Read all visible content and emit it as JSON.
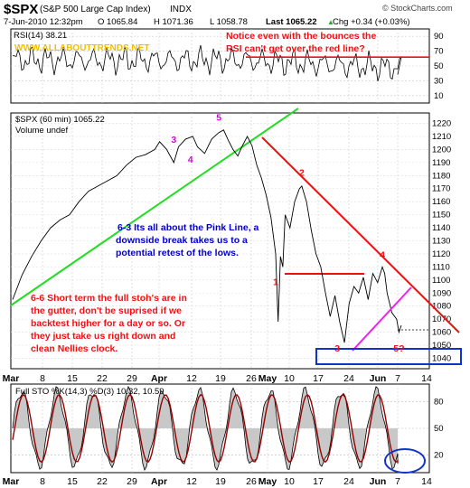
{
  "header": {
    "symbol": "$SPX",
    "name": "(S&P 500 Large Cap Index)",
    "exchange": "INDX",
    "watermark": "© StockCharts.com",
    "quote": {
      "date_time": "7-Jun-2010 12:32pm",
      "open": "O 1065.84",
      "high": "H 1071.36",
      "low": "L 1058.78",
      "last": "Last 1065.22",
      "change": "Chg +0.34 (+0.03%)",
      "change_arrow": "▲"
    }
  },
  "colors": {
    "price": "#000000",
    "green_line": "#22dd22",
    "red_line": "#ee1111",
    "pink_line": "#ee22ee",
    "annotation_blue": "#0000cc",
    "annotation_red": "#ee1111",
    "wave_magenta": "#dd00dd",
    "box_blue": "#1133cc",
    "url_yellow": "#f0c000",
    "osc_fill": "#c8c8c8",
    "osc_line": "#990000"
  },
  "chart_data": [
    {
      "type": "line",
      "panel": "rsi",
      "legend": "RSI(14) 38.21",
      "y_ticks": [
        10,
        30,
        50,
        70,
        90
      ],
      "tick_labels_right": [
        "90",
        "70",
        "50",
        "30",
        "10"
      ],
      "ylim": [
        0,
        100
      ],
      "reference_line": 62,
      "values_end": 38.21,
      "watermark_url": "WWW.ALLABOUTTRENDS.NET",
      "annotation": [
        "Notice even with  the bounces the",
        "RSI can't get over the red line?"
      ]
    },
    {
      "type": "line",
      "panel": "price",
      "legend": "$SPX (60 min) 1065.22",
      "volume_legend": "Volume undef",
      "ylim": [
        1032,
        1228
      ],
      "y_ticks": [
        1040,
        1050,
        1060,
        1070,
        1080,
        1090,
        1100,
        1110,
        1120,
        1130,
        1140,
        1150,
        1160,
        1170,
        1180,
        1190,
        1200,
        1210,
        1220
      ],
      "x_dates": [
        "Mar",
        "8",
        "15",
        "22",
        "29",
        "Apr",
        "12",
        "19",
        "26",
        "May",
        "10",
        "17",
        "24",
        "Jun",
        "7",
        "14"
      ],
      "price_path": [
        [
          0,
          1085
        ],
        [
          4,
          1104
        ],
        [
          8,
          1118
        ],
        [
          12,
          1130
        ],
        [
          16,
          1140
        ],
        [
          20,
          1146
        ],
        [
          24,
          1150
        ],
        [
          28,
          1160
        ],
        [
          32,
          1168
        ],
        [
          36,
          1172
        ],
        [
          40,
          1176
        ],
        [
          44,
          1180
        ],
        [
          48,
          1188
        ],
        [
          52,
          1194
        ],
        [
          56,
          1196
        ],
        [
          60,
          1200
        ],
        [
          62,
          1206
        ],
        [
          65,
          1200
        ],
        [
          68,
          1190
        ],
        [
          70,
          1202
        ],
        [
          73,
          1208
        ],
        [
          76,
          1210
        ],
        [
          78,
          1202
        ],
        [
          81,
          1197
        ],
        [
          84,
          1208
        ],
        [
          87,
          1213
        ],
        [
          89,
          1215
        ],
        [
          91,
          1207
        ],
        [
          93,
          1200
        ],
        [
          95,
          1195
        ],
        [
          97,
          1203
        ],
        [
          99,
          1210
        ],
        [
          101,
          1203
        ],
        [
          103,
          1188
        ],
        [
          105,
          1178
        ],
        [
          107,
          1165
        ],
        [
          109,
          1148
        ],
        [
          111,
          1120
        ],
        [
          112,
          1068
        ],
        [
          113,
          1118
        ],
        [
          114,
          1110
        ],
        [
          115,
          1150
        ],
        [
          117,
          1140
        ],
        [
          119,
          1160
        ],
        [
          121,
          1170
        ],
        [
          122,
          1172
        ],
        [
          124,
          1160
        ],
        [
          126,
          1138
        ],
        [
          128,
          1120
        ],
        [
          130,
          1110
        ],
        [
          132,
          1090
        ],
        [
          134,
          1072
        ],
        [
          136,
          1088
        ],
        [
          138,
          1068
        ],
        [
          140,
          1052
        ],
        [
          142,
          1082
        ],
        [
          144,
          1095
        ],
        [
          146,
          1090
        ],
        [
          148,
          1102
        ],
        [
          150,
          1085
        ],
        [
          152,
          1105
        ],
        [
          154,
          1098
        ],
        [
          156,
          1110
        ],
        [
          157,
          1105
        ],
        [
          158,
          1090
        ],
        [
          160,
          1075
        ],
        [
          162,
          1070
        ],
        [
          163,
          1060
        ],
        [
          164,
          1065.22
        ]
      ],
      "wave_labels": [
        {
          "text": "1",
          "color": "red",
          "x": 111,
          "y": 1096
        },
        {
          "text": "2",
          "color": "red",
          "x": 122,
          "y": 1180
        },
        {
          "text": "3",
          "color": "red",
          "x": 137,
          "y": 1045
        },
        {
          "text": "4",
          "color": "red",
          "x": 156,
          "y": 1117
        },
        {
          "text": "5?",
          "color": "red",
          "x": 163,
          "y": 1045
        },
        {
          "text": "3",
          "color": "magenta",
          "x": 68,
          "y": 1205
        },
        {
          "text": "4",
          "color": "magenta",
          "x": 75,
          "y": 1190
        },
        {
          "text": "5",
          "color": "magenta",
          "x": 87,
          "y": 1222
        }
      ],
      "annotation_middle": [
        "6-3 Its all about the Pink Line, a",
        "downside break takes us to a",
        "potential retest of the lows."
      ],
      "annotation_left": [
        "6-6 Short term the full stoh's are in",
        "the gutter, don't be suprised if we",
        "backtest higher for a day or so. Or",
        "they just take us right down and",
        "clean Nellies clock."
      ]
    },
    {
      "type": "line",
      "panel": "stochastic",
      "legend": "Full STO %K(14,3) %D(3) 10.32, 10.59",
      "tick_labels_right": [
        "80",
        "50",
        "20"
      ],
      "ylim": [
        0,
        100
      ],
      "values_end": {
        "k": 10.32,
        "d": 10.59
      }
    }
  ]
}
